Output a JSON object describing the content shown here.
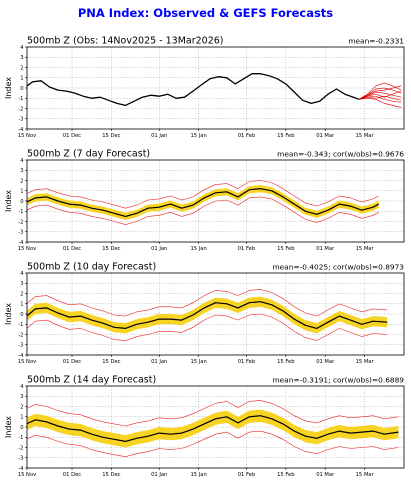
{
  "figure": {
    "title": "PNA Index: Observed & GEFS Forecasts"
  },
  "chart_data": [
    {
      "type": "line",
      "title": "500mb Z (Obs: 14Nov2025 - 13Mar2026)",
      "stat_text": "mean=-0.2331",
      "ylabel": "Index",
      "ylim": [
        -4,
        4
      ],
      "yticks": [
        -4,
        -3,
        -2,
        -1,
        0,
        1,
        2,
        3,
        4
      ],
      "xlim": [
        "2025-11-15",
        "2026-03-29"
      ],
      "xticks": [
        "2025-11-15",
        "2025-12-01",
        "2025-12-15",
        "2026-01-01",
        "2026-01-15",
        "2026-02-01",
        "2026-02-15",
        "2026-03-01",
        "2026-03-15"
      ],
      "xtick_labels": [
        "15 Nov",
        "01 Dec",
        "15 Dec",
        "01 Jan",
        "15 Jan",
        "01 Feb",
        "15 Feb",
        "01 Mar",
        "15 Mar"
      ],
      "grid": true,
      "colors": {
        "observed": "#000000",
        "ensemble": "#dd0000"
      },
      "observed": {
        "x": [
          "2025-11-14",
          "2025-11-17",
          "2025-11-20",
          "2025-11-23",
          "2025-11-26",
          "2025-11-29",
          "2025-12-02",
          "2025-12-05",
          "2025-12-08",
          "2025-12-11",
          "2025-12-14",
          "2025-12-17",
          "2025-12-20",
          "2025-12-23",
          "2025-12-26",
          "2025-12-29",
          "2026-01-01",
          "2026-01-04",
          "2026-01-07",
          "2026-01-10",
          "2026-01-13",
          "2026-01-16",
          "2026-01-19",
          "2026-01-22",
          "2026-01-25",
          "2026-01-28",
          "2026-01-31",
          "2026-02-03",
          "2026-02-06",
          "2026-02-09",
          "2026-02-12",
          "2026-02-15",
          "2026-02-18",
          "2026-02-21",
          "2026-02-24",
          "2026-02-27",
          "2026-03-02",
          "2026-03-05",
          "2026-03-08",
          "2026-03-11",
          "2026-03-13"
        ],
        "y": [
          0.0,
          0.6,
          0.7,
          0.1,
          -0.2,
          -0.3,
          -0.5,
          -0.8,
          -1.0,
          -0.9,
          -1.2,
          -1.5,
          -1.7,
          -1.3,
          -0.9,
          -0.7,
          -0.8,
          -0.6,
          -1.0,
          -0.9,
          -0.3,
          0.3,
          0.9,
          1.1,
          1.0,
          0.4,
          0.9,
          1.4,
          1.4,
          1.2,
          0.9,
          0.4,
          -0.4,
          -1.2,
          -1.5,
          -1.3,
          -0.6,
          -0.1,
          -0.6,
          -0.9,
          -1.1
        ]
      },
      "ensemble": {
        "x": [
          "2026-03-13",
          "2026-03-16",
          "2026-03-19",
          "2026-03-22",
          "2026-03-25",
          "2026-03-28"
        ],
        "members": [
          [
            -1.1,
            -0.6,
            0.2,
            0.5,
            0.2,
            -0.2
          ],
          [
            -1.1,
            -0.7,
            -0.1,
            0.0,
            -0.2,
            -0.5
          ],
          [
            -1.1,
            -0.8,
            -0.4,
            -0.5,
            -0.7,
            -0.9
          ],
          [
            -1.1,
            -0.9,
            -0.8,
            -1.1,
            -1.3,
            -1.4
          ],
          [
            -1.1,
            -1.0,
            -1.1,
            -1.5,
            -1.7,
            -1.9
          ],
          [
            -1.1,
            -0.8,
            -0.6,
            -0.9,
            -0.6,
            -0.3
          ],
          [
            -1.1,
            -0.9,
            -1.0,
            -0.8,
            -1.0,
            -1.2
          ],
          [
            -1.1,
            -0.7,
            -0.3,
            -0.2,
            0.0,
            0.2
          ]
        ]
      }
    },
    {
      "type": "line",
      "title": "500mb Z (7 day Forecast)",
      "stat_text": "mean=-0.343; cor(w/obs)=0.9676",
      "ylabel": "Index",
      "ylim": [
        -4,
        4
      ],
      "yticks": [
        -4,
        -3,
        -2,
        -1,
        0,
        1,
        2,
        3,
        4
      ],
      "xlim": [
        "2025-11-15",
        "2026-03-29"
      ],
      "xticks": [
        "2025-11-15",
        "2025-12-01",
        "2025-12-15",
        "2026-01-01",
        "2026-01-15",
        "2026-02-01",
        "2026-02-15",
        "2026-03-01",
        "2026-03-15"
      ],
      "xtick_labels": [
        "15 Nov",
        "01 Dec",
        "15 Dec",
        "01 Jan",
        "15 Jan",
        "01 Feb",
        "15 Feb",
        "01 Mar",
        "15 Mar"
      ],
      "grid": true,
      "colors": {
        "forecast": "#000000",
        "spread": "#f7d117",
        "range": "#ee2222"
      },
      "x": [
        "2025-11-14",
        "2025-11-18",
        "2025-11-22",
        "2025-11-26",
        "2025-11-30",
        "2025-12-04",
        "2025-12-08",
        "2025-12-12",
        "2025-12-16",
        "2025-12-20",
        "2025-12-24",
        "2025-12-28",
        "2026-01-01",
        "2026-01-05",
        "2026-01-09",
        "2026-01-13",
        "2026-01-17",
        "2026-01-21",
        "2026-01-25",
        "2026-01-29",
        "2026-02-02",
        "2026-02-06",
        "2026-02-10",
        "2026-02-14",
        "2026-02-18",
        "2026-02-22",
        "2026-02-26",
        "2026-03-02",
        "2026-03-06",
        "2026-03-10",
        "2026-03-14",
        "2026-03-18",
        "2026-03-20"
      ],
      "forecast": [
        -0.2,
        0.3,
        0.4,
        0.0,
        -0.3,
        -0.4,
        -0.7,
        -0.9,
        -1.2,
        -1.5,
        -1.2,
        -0.7,
        -0.6,
        -0.3,
        -0.7,
        -0.4,
        0.3,
        0.8,
        0.9,
        0.4,
        1.1,
        1.2,
        1.0,
        0.4,
        -0.3,
        -1.0,
        -1.3,
        -0.9,
        -0.3,
        -0.5,
        -0.9,
        -0.6,
        -0.3
      ],
      "spread": 0.35,
      "range": 0.8
    },
    {
      "type": "line",
      "title": "500mb Z (10 day Forecast)",
      "stat_text": "mean=-0.4025; cor(w/obs)=0.8973",
      "ylabel": "Index",
      "ylim": [
        -4,
        4
      ],
      "yticks": [
        -4,
        -3,
        -2,
        -1,
        0,
        1,
        2,
        3,
        4
      ],
      "xlim": [
        "2025-11-15",
        "2026-03-29"
      ],
      "xticks": [
        "2025-11-15",
        "2025-12-01",
        "2025-12-15",
        "2026-01-01",
        "2026-01-15",
        "2026-02-01",
        "2026-02-15",
        "2026-03-01",
        "2026-03-15"
      ],
      "xtick_labels": [
        "15 Nov",
        "01 Dec",
        "15 Dec",
        "01 Jan",
        "15 Jan",
        "01 Feb",
        "15 Feb",
        "01 Mar",
        "15 Mar"
      ],
      "grid": true,
      "colors": {
        "forecast": "#000000",
        "spread": "#f7d117",
        "range": "#ee2222"
      },
      "x": [
        "2025-11-14",
        "2025-11-18",
        "2025-11-22",
        "2025-11-26",
        "2025-11-30",
        "2025-12-04",
        "2025-12-08",
        "2025-12-12",
        "2025-12-16",
        "2025-12-20",
        "2025-12-24",
        "2025-12-28",
        "2026-01-01",
        "2026-01-05",
        "2026-01-09",
        "2026-01-13",
        "2026-01-17",
        "2026-01-21",
        "2026-01-25",
        "2026-01-29",
        "2026-02-02",
        "2026-02-06",
        "2026-02-10",
        "2026-02-14",
        "2026-02-18",
        "2026-02-22",
        "2026-02-26",
        "2026-03-02",
        "2026-03-06",
        "2026-03-10",
        "2026-03-14",
        "2026-03-18",
        "2026-03-23"
      ],
      "forecast": [
        -0.4,
        0.5,
        0.6,
        0.1,
        -0.3,
        -0.2,
        -0.6,
        -0.9,
        -1.3,
        -1.4,
        -1.0,
        -0.8,
        -0.5,
        -0.5,
        -0.6,
        -0.1,
        0.6,
        1.1,
        1.0,
        0.6,
        1.1,
        1.2,
        0.9,
        0.3,
        -0.5,
        -1.1,
        -1.4,
        -0.8,
        -0.2,
        -0.6,
        -1.0,
        -0.7,
        -0.8
      ],
      "spread": 0.5,
      "range": 1.2
    },
    {
      "type": "line",
      "title": "500mb Z (14 day Forecast)",
      "stat_text": "mean=-0.3191; cor(w/obs)=0.6889",
      "ylabel": "Index",
      "ylim": [
        -4,
        4
      ],
      "yticks": [
        -4,
        -3,
        -2,
        -1,
        0,
        1,
        2,
        3,
        4
      ],
      "xlim": [
        "2025-11-15",
        "2026-03-29"
      ],
      "xticks": [
        "2025-11-15",
        "2025-12-01",
        "2025-12-15",
        "2026-01-01",
        "2026-01-15",
        "2026-02-01",
        "2026-02-15",
        "2026-03-01",
        "2026-03-15"
      ],
      "xtick_labels": [
        "15 Nov",
        "01 Dec",
        "15 Dec",
        "01 Jan",
        "15 Jan",
        "01 Feb",
        "15 Feb",
        "01 Mar",
        "15 Mar"
      ],
      "grid": true,
      "colors": {
        "forecast": "#000000",
        "spread": "#f7d117",
        "range": "#ee2222"
      },
      "x": [
        "2025-11-14",
        "2025-11-18",
        "2025-11-22",
        "2025-11-26",
        "2025-11-30",
        "2025-12-04",
        "2025-12-08",
        "2025-12-12",
        "2025-12-16",
        "2025-12-20",
        "2025-12-24",
        "2025-12-28",
        "2026-01-01",
        "2026-01-05",
        "2026-01-09",
        "2026-01-13",
        "2026-01-17",
        "2026-01-21",
        "2026-01-25",
        "2026-01-29",
        "2026-02-02",
        "2026-02-06",
        "2026-02-10",
        "2026-02-14",
        "2026-02-18",
        "2026-02-22",
        "2026-02-26",
        "2026-03-02",
        "2026-03-06",
        "2026-03-10",
        "2026-03-14",
        "2026-03-18",
        "2026-03-22",
        "2026-03-27"
      ],
      "forecast": [
        0.2,
        0.7,
        0.5,
        0.1,
        -0.2,
        -0.3,
        -0.7,
        -1.0,
        -1.2,
        -1.4,
        -1.1,
        -0.9,
        -0.6,
        -0.7,
        -0.6,
        -0.2,
        0.3,
        0.8,
        1.0,
        0.4,
        1.0,
        1.1,
        0.8,
        0.3,
        -0.4,
        -0.9,
        -1.1,
        -0.7,
        -0.4,
        -0.6,
        -0.5,
        -0.4,
        -0.7,
        -0.5
      ],
      "spread": 0.6,
      "range": 1.5
    }
  ]
}
